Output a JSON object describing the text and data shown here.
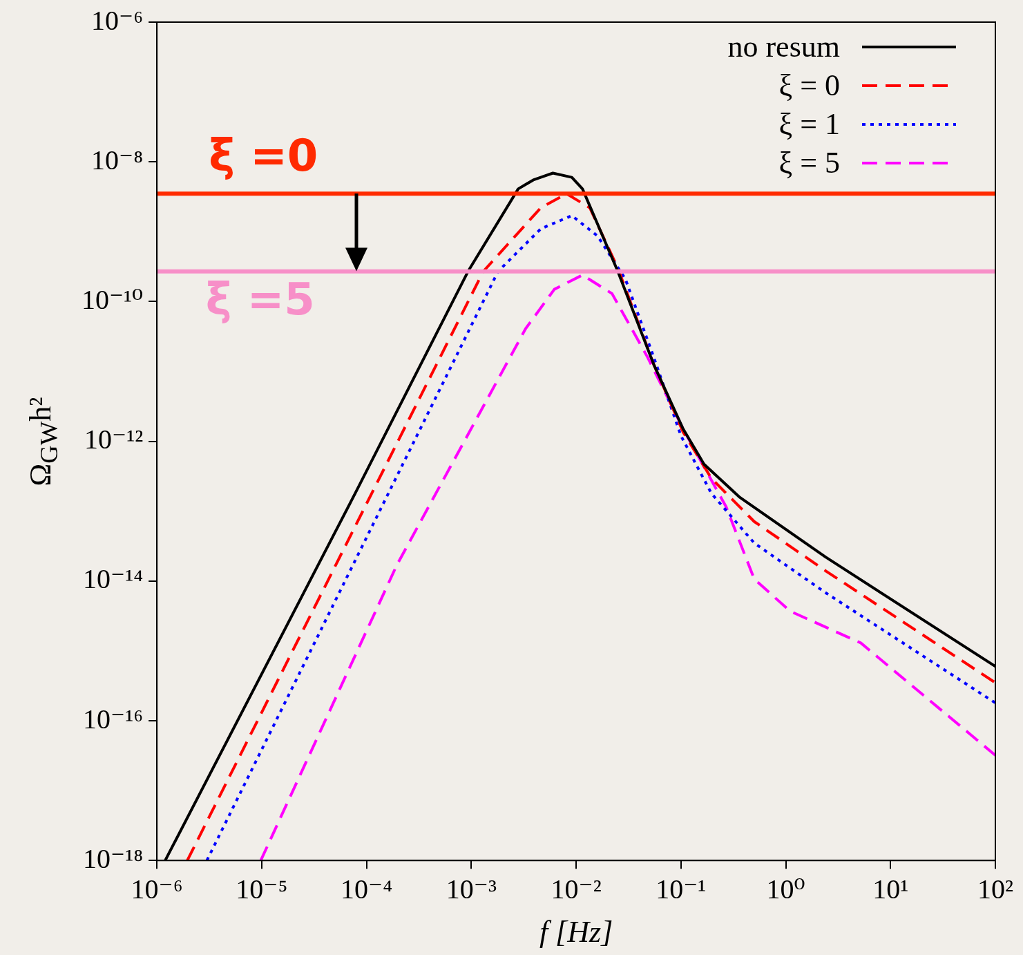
{
  "chart_data": {
    "type": "line",
    "xlabel": "f [Hz]",
    "ylabel": "Ω$_{GW}$h²",
    "log": "xy",
    "legend": "top right",
    "grid": false,
    "xlim": [
      1e-06,
      100
    ],
    "ylim": [
      1e-18,
      1e-06
    ],
    "xticks": [
      {
        "value": 1e-06,
        "label": "10⁻⁶"
      },
      {
        "value": 1e-05,
        "label": "10⁻⁵"
      },
      {
        "value": 0.0001,
        "label": "10⁻⁴"
      },
      {
        "value": 0.001,
        "label": "10⁻³"
      },
      {
        "value": 0.01,
        "label": "10⁻²"
      },
      {
        "value": 0.1,
        "label": "10⁻¹"
      },
      {
        "value": 1,
        "label": "10⁰"
      },
      {
        "value": 10,
        "label": "10¹"
      },
      {
        "value": 100,
        "label": "10²"
      }
    ],
    "yticks": [
      {
        "value": 1e-18,
        "label": "10⁻¹⁸"
      },
      {
        "value": 1e-16,
        "label": "10⁻¹⁶"
      },
      {
        "value": 1e-14,
        "label": "10⁻¹⁴"
      },
      {
        "value": 1e-12,
        "label": "10⁻¹²"
      },
      {
        "value": 1e-10,
        "label": "10⁻¹⁰"
      },
      {
        "value": 1e-08,
        "label": "10⁻⁸"
      },
      {
        "value": 1e-06,
        "label": "10⁻⁶"
      }
    ],
    "series": [
      {
        "name": "no resum",
        "color": "#000000",
        "line_style": "solid",
        "x": [
          1.2e-06,
          7.8e-05,
          0.00093,
          0.0028,
          0.0039,
          0.006,
          0.0091,
          0.0115,
          0.025,
          0.055,
          0.105,
          0.166,
          0.36,
          2.4,
          100
        ],
        "values": [
          1e-18,
          1.8e-13,
          2.7e-10,
          4.1e-09,
          5.5e-09,
          6.9e-09,
          6e-09,
          4.1e-09,
          2.7e-10,
          1.26e-11,
          1.5e-12,
          4.7e-13,
          1.6e-13,
          2.2e-14,
          6e-16
        ]
      },
      {
        "name": "ξ = 0",
        "color": "#ff0000",
        "line_style": "dashed",
        "x": [
          1.95e-06,
          0.0013,
          0.0046,
          0.0081,
          0.0135,
          0.025,
          0.055,
          0.105,
          0.195,
          0.5,
          2.4,
          100
        ],
        "values": [
          1e-18,
          2.7e-10,
          2.2e-09,
          3.5e-09,
          2.2e-09,
          3e-10,
          1.26e-11,
          1.35e-12,
          2.95e-13,
          7.1e-14,
          1.4e-14,
          3.5e-16
        ]
      },
      {
        "name": "ξ = 1",
        "color": "#0000ff",
        "line_style": "dotted",
        "x": [
          3e-06,
          0.0018,
          0.0046,
          0.0091,
          0.016,
          0.0295,
          0.055,
          0.1,
          0.195,
          0.5,
          2.4,
          100
        ],
        "values": [
          1e-18,
          2.7e-10,
          1.1e-09,
          1.7e-09,
          8.7e-10,
          2.1e-10,
          1.6e-11,
          1.2e-12,
          1.8e-13,
          3.5e-14,
          6.8e-15,
          1.8e-16
        ]
      },
      {
        "name": "ξ = 5",
        "color": "#ff00ff",
        "line_style": "dashed",
        "x": [
          9.8e-06,
          0.000195,
          0.0033,
          0.0062,
          0.0115,
          0.022,
          0.048,
          0.105,
          0.27,
          0.5,
          1.1,
          5.2,
          100
        ],
        "values": [
          1e-18,
          1.7e-14,
          4.1e-11,
          1.5e-10,
          2.4e-10,
          1.3e-10,
          1.6e-11,
          1.5e-12,
          1.15e-13,
          1.07e-14,
          3.7e-15,
          1.3e-15,
          3.2e-17
        ]
      }
    ],
    "ref_lines": [
      {
        "axis": "y",
        "value": 3.5e-09,
        "color": "#ff2a00"
      },
      {
        "axis": "y",
        "value": 2.7e-10,
        "color": "#f78fc8"
      }
    ],
    "annotations": [
      "ξ =0",
      {
        "text": "ξ =5",
        "x": 8e-05,
        "y": 2.7e-10
      }
    ]
  }
}
